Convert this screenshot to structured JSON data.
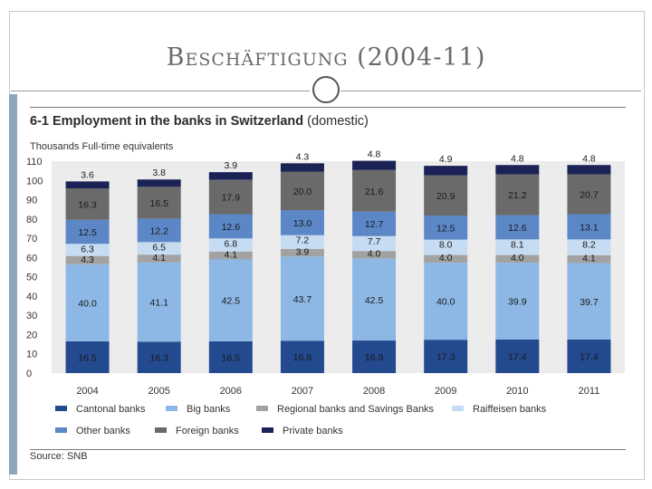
{
  "slide": {
    "title": "Beschäftigung (2004-11)"
  },
  "chart": {
    "title_bold": "6-1 Employment in the banks in Switzerland",
    "title_rest": " (domestic)",
    "units": "Thousands Full-time equivalents",
    "source": "Source: SNB"
  },
  "colors": {
    "cantonal": "#23498e",
    "big": "#8db8e6",
    "regional": "#a2a2a2",
    "raiffeisen": "#c6dcf2",
    "other": "#5b87c7",
    "foreign": "#6a6a6a",
    "private": "#1b2255",
    "plot_bg": "#ececec"
  },
  "chart_data": {
    "type": "bar",
    "stacked": true,
    "categories": [
      "2004",
      "2005",
      "2006",
      "2007",
      "2008",
      "2009",
      "2010",
      "2011"
    ],
    "ylim": [
      0,
      110
    ],
    "yticks": [
      0,
      10,
      20,
      30,
      40,
      50,
      60,
      70,
      80,
      90,
      100,
      110
    ],
    "grid": false,
    "legend_position": "bottom",
    "series": [
      {
        "name": "Cantonal banks",
        "key": "cantonal",
        "values": [
          16.5,
          16.3,
          16.5,
          16.8,
          16.9,
          17.3,
          17.4,
          17.4
        ],
        "labels": [
          "16.5",
          "16.3",
          "16.5",
          "16.8",
          "16.9",
          "17.3",
          "17.4",
          "17.4"
        ]
      },
      {
        "name": "Big banks",
        "key": "big",
        "values": [
          40.0,
          41.1,
          42.5,
          43.7,
          42.5,
          40.0,
          39.9,
          39.7
        ],
        "labels": [
          "40.0",
          "41.1",
          "42.5",
          "43.7",
          "42.5",
          "40.0",
          "39.9",
          "39.7"
        ]
      },
      {
        "name": "Regional banks and Savings Banks",
        "key": "regional",
        "values": [
          4.3,
          4.1,
          4.1,
          3.9,
          4.0,
          4.0,
          4.0,
          4.1
        ],
        "labels": [
          "4.3",
          "4.1",
          "4.1",
          "3.9",
          "4.0",
          "4.0",
          "4.0",
          "4.1"
        ]
      },
      {
        "name": "Raiffeisen banks",
        "key": "raiffeisen",
        "values": [
          6.3,
          6.5,
          6.8,
          7.2,
          7.7,
          8.0,
          8.1,
          8.2
        ],
        "labels": [
          "6.3",
          "6.5",
          "6.8",
          "7.2",
          "7.7",
          "8.0",
          "8.1",
          "8.2"
        ]
      },
      {
        "name": "Other banks",
        "key": "other",
        "values": [
          12.5,
          12.2,
          12.6,
          13.0,
          12.7,
          12.5,
          12.6,
          13.1
        ],
        "labels": [
          "12.5",
          "12.2",
          "12.6",
          "13.0",
          "12.7",
          "12.5",
          "12.6",
          "13.1"
        ]
      },
      {
        "name": "Foreign banks",
        "key": "foreign",
        "values": [
          16.3,
          16.5,
          17.9,
          20.0,
          21.6,
          20.9,
          21.2,
          20.7
        ],
        "labels": [
          "16.3",
          "16.5",
          "17.9",
          "20.0",
          "21.6",
          "20.9",
          "21.2",
          "20.7"
        ]
      },
      {
        "name": "Private banks",
        "key": "private",
        "values": [
          3.6,
          3.8,
          3.9,
          4.3,
          4.8,
          4.9,
          4.8,
          4.8
        ],
        "labels": [
          "3.6",
          "3.8",
          "3.9",
          "4.3",
          "4.8",
          "4.9",
          "4.8",
          "4.8"
        ]
      }
    ],
    "legend_order": [
      "cantonal",
      "big",
      "regional",
      "raiffeisen",
      "other",
      "foreign",
      "private"
    ]
  }
}
